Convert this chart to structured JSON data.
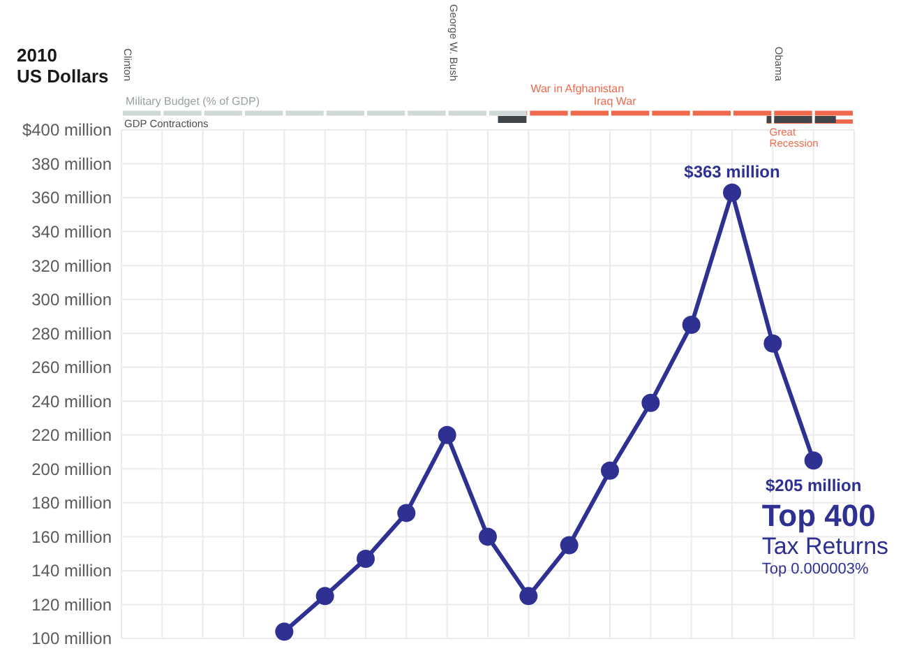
{
  "chart_data": {
    "type": "line",
    "ylabel": "2010 US Dollars",
    "categories": [
      null,
      null,
      null,
      null,
      null,
      null,
      null,
      null,
      null,
      null,
      null,
      null,
      null,
      null,
      null,
      null,
      null,
      null,
      null
    ],
    "series": [
      {
        "name": "Top 400",
        "color": "#2e3192",
        "values": [
          null,
          null,
          null,
          null,
          104,
          125,
          147,
          174,
          220,
          160,
          125,
          155,
          199,
          239,
          285,
          363,
          274,
          205,
          null
        ],
        "value_labels": [
          null,
          null,
          null,
          null,
          null,
          null,
          null,
          null,
          null,
          null,
          null,
          null,
          null,
          null,
          null,
          "$363 million",
          null,
          "$205 million",
          null
        ]
      }
    ],
    "ylim": [
      100,
      400
    ],
    "yticks": [
      {
        "value": 100,
        "label": "100 million"
      },
      {
        "value": 120,
        "label": "120 million"
      },
      {
        "value": 140,
        "label": "140 million"
      },
      {
        "value": 160,
        "label": "160 million"
      },
      {
        "value": 180,
        "label": "180 million"
      },
      {
        "value": 200,
        "label": "200 million"
      },
      {
        "value": 220,
        "label": "220 million"
      },
      {
        "value": 240,
        "label": "240 million"
      },
      {
        "value": 260,
        "label": "260 million"
      },
      {
        "value": 280,
        "label": "280 million"
      },
      {
        "value": 300,
        "label": "300 million"
      },
      {
        "value": 320,
        "label": "320 million"
      },
      {
        "value": 340,
        "label": "340 million"
      },
      {
        "value": 360,
        "label": "360 million"
      },
      {
        "value": 380,
        "label": "380 million"
      },
      {
        "value": 400,
        "label": "$400 million"
      }
    ],
    "grid": true,
    "tick_labels": "y",
    "marker": "circle",
    "annotations": [
      "Tax Returns",
      "Top 0.000003%",
      "Clinton",
      "George W. Bush",
      "Obama",
      "Military Budget (% of GDP)",
      "War in Afghanistan",
      "Iraq War",
      "GDP Contractions",
      "Great Recession"
    ]
  }
}
